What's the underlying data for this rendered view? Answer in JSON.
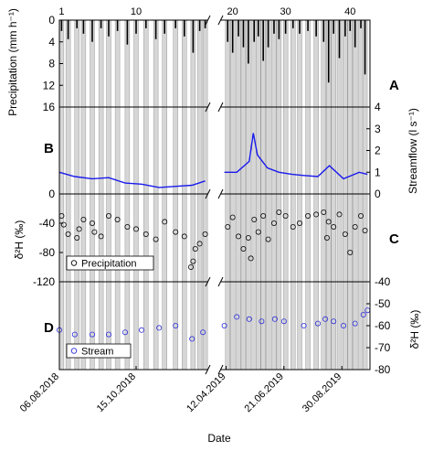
{
  "chart_data": [
    {
      "panel": "A",
      "type": "bar",
      "panel_label": "A",
      "ylabel": "Precipitation (mm h⁻¹)",
      "ylim": [
        16,
        0
      ],
      "y_inverted": true,
      "yticks": [
        0,
        4,
        8,
        12,
        16
      ],
      "event_axis": {
        "label_positions": [
          1,
          10,
          20,
          30,
          40
        ],
        "labels": [
          "1",
          "10",
          "20",
          "30",
          "40"
        ]
      },
      "events_shaded_count": 40,
      "series": [
        {
          "name": "",
          "color": "#000000",
          "x": [
            "2018-08-08",
            "2018-08-14",
            "2018-08-22",
            "2018-08-28",
            "2018-09-05",
            "2018-09-13",
            "2018-09-20",
            "2018-09-28",
            "2018-10-07",
            "2018-10-15",
            "2018-10-24",
            "2018-11-02",
            "2018-11-10",
            "2018-11-20",
            "2018-11-28",
            "2018-12-06",
            "2018-12-12",
            "2018-12-17",
            "2019-04-14",
            "2019-04-20",
            "2019-04-27",
            "2019-05-03",
            "2019-05-09",
            "2019-05-16",
            "2019-05-21",
            "2019-05-27",
            "2019-06-02",
            "2019-06-09",
            "2019-06-15",
            "2019-06-23",
            "2019-07-02",
            "2019-07-10",
            "2019-07-20",
            "2019-07-30",
            "2019-08-08",
            "2019-08-14",
            "2019-08-20",
            "2019-08-27",
            "2019-09-03",
            "2019-09-09",
            "2019-09-15",
            "2019-09-22",
            "2019-09-27"
          ],
          "values": [
            2.0,
            3.5,
            1.5,
            2.5,
            4.0,
            1.5,
            3.0,
            2.0,
            4.5,
            2.5,
            1.5,
            3.5,
            2.5,
            1.5,
            3.0,
            6.0,
            2.0,
            1.5,
            4.0,
            6.0,
            3.0,
            5.0,
            8.0,
            4.0,
            3.0,
            7.5,
            5.0,
            2.5,
            3.5,
            2.5,
            1.5,
            2.5,
            2.0,
            3.0,
            4.0,
            11.5,
            2.5,
            7.0,
            3.0,
            2.0,
            5.0,
            1.5,
            10.0
          ]
        }
      ]
    },
    {
      "panel": "B",
      "type": "line",
      "panel_label": "B",
      "ylabel": "Streamflow (l s⁻¹)",
      "ylim": [
        0,
        4
      ],
      "yticks": [
        0,
        1,
        2,
        3,
        4
      ],
      "series": [
        {
          "name": "",
          "color": "#1a1aee",
          "x": [
            "2018-08-06",
            "2018-08-20",
            "2018-09-05",
            "2018-09-20",
            "2018-10-05",
            "2018-10-20",
            "2018-11-05",
            "2018-11-20",
            "2018-12-05",
            "2018-12-17",
            "2019-04-10",
            "2019-04-25",
            "2019-05-10",
            "2019-05-15",
            "2019-05-20",
            "2019-06-01",
            "2019-06-15",
            "2019-07-01",
            "2019-07-15",
            "2019-08-01",
            "2019-08-15",
            "2019-09-01",
            "2019-09-20",
            "2019-09-30"
          ],
          "values": [
            1.0,
            0.8,
            0.7,
            0.75,
            0.5,
            0.45,
            0.3,
            0.35,
            0.4,
            0.6,
            1.0,
            1.0,
            1.5,
            2.8,
            1.8,
            1.2,
            1.0,
            0.9,
            0.85,
            0.8,
            1.3,
            0.7,
            1.0,
            0.9
          ]
        }
      ]
    },
    {
      "panel": "C",
      "type": "scatter",
      "panel_label": "C",
      "ylabel": "δ²H (‰)",
      "ylim": [
        -120,
        0
      ],
      "yticks": [
        -120,
        -80,
        -40,
        0
      ],
      "legend": {
        "placement": "bottom-left",
        "label": "Precipitation"
      },
      "series": [
        {
          "name": "Precipitation",
          "color": "#000000",
          "marker": "open-circle",
          "x": [
            "2018-08-08",
            "2018-08-10",
            "2018-08-14",
            "2018-08-22",
            "2018-08-24",
            "2018-08-28",
            "2018-09-05",
            "2018-09-07",
            "2018-09-13",
            "2018-09-20",
            "2018-09-28",
            "2018-10-07",
            "2018-10-15",
            "2018-10-24",
            "2018-11-02",
            "2018-11-10",
            "2018-11-20",
            "2018-11-28",
            "2018-12-04",
            "2018-12-06",
            "2018-12-08",
            "2018-12-12",
            "2018-12-17",
            "2019-04-14",
            "2019-04-20",
            "2019-04-27",
            "2019-05-03",
            "2019-05-09",
            "2019-05-12",
            "2019-05-16",
            "2019-05-21",
            "2019-05-27",
            "2019-06-02",
            "2019-06-09",
            "2019-06-15",
            "2019-06-23",
            "2019-07-02",
            "2019-07-10",
            "2019-07-20",
            "2019-07-30",
            "2019-08-08",
            "2019-08-12",
            "2019-08-14",
            "2019-08-20",
            "2019-08-27",
            "2019-09-03",
            "2019-09-09",
            "2019-09-15",
            "2019-09-22",
            "2019-09-27"
          ],
          "values": [
            -30,
            -42,
            -55,
            -60,
            -48,
            -35,
            -40,
            -52,
            -58,
            -30,
            -35,
            -45,
            -48,
            -55,
            -62,
            -38,
            -52,
            -58,
            -100,
            -92,
            -75,
            -68,
            -55,
            -45,
            -32,
            -58,
            -75,
            -60,
            -88,
            -35,
            -52,
            -30,
            -62,
            -40,
            -25,
            -30,
            -45,
            -40,
            -30,
            -28,
            -25,
            -60,
            -38,
            -45,
            -28,
            -55,
            -80,
            -45,
            -30,
            -50
          ]
        }
      ]
    },
    {
      "panel": "D",
      "type": "scatter",
      "panel_label": "D",
      "ylabel": "δ²H (‰)",
      "ylim": [
        -80,
        -40
      ],
      "yticks": [
        -80,
        -70,
        -60,
        -50,
        -40
      ],
      "legend": {
        "placement": "bottom-left",
        "label": "Stream"
      },
      "series": [
        {
          "name": "Stream",
          "color": "#2b2bd9",
          "marker": "open-circle",
          "x": [
            "2018-08-06",
            "2018-08-20",
            "2018-09-05",
            "2018-09-20",
            "2018-10-05",
            "2018-10-20",
            "2018-11-05",
            "2018-11-20",
            "2018-12-05",
            "2018-12-15",
            "2019-04-10",
            "2019-04-25",
            "2019-05-10",
            "2019-05-25",
            "2019-06-10",
            "2019-06-21",
            "2019-07-15",
            "2019-08-01",
            "2019-08-10",
            "2019-08-20",
            "2019-09-01",
            "2019-09-15",
            "2019-09-25",
            "2019-09-30"
          ],
          "values": [
            -62,
            -64,
            -64,
            -64,
            -63,
            -62,
            -61,
            -60,
            -66,
            -63,
            -60,
            -56,
            -57,
            -58,
            -57,
            -58,
            -60,
            -59,
            -57,
            -58,
            -60,
            -59,
            -55,
            -53
          ]
        }
      ]
    },
    {
      "panel": "x-axis",
      "type": "axis",
      "xlabel": "Date",
      "xticklabels": [
        "06.08.2018",
        "15.10.2018",
        "12.04.2019",
        "21.06.2019",
        "30.08.2019"
      ],
      "axis_break": true
    }
  ]
}
